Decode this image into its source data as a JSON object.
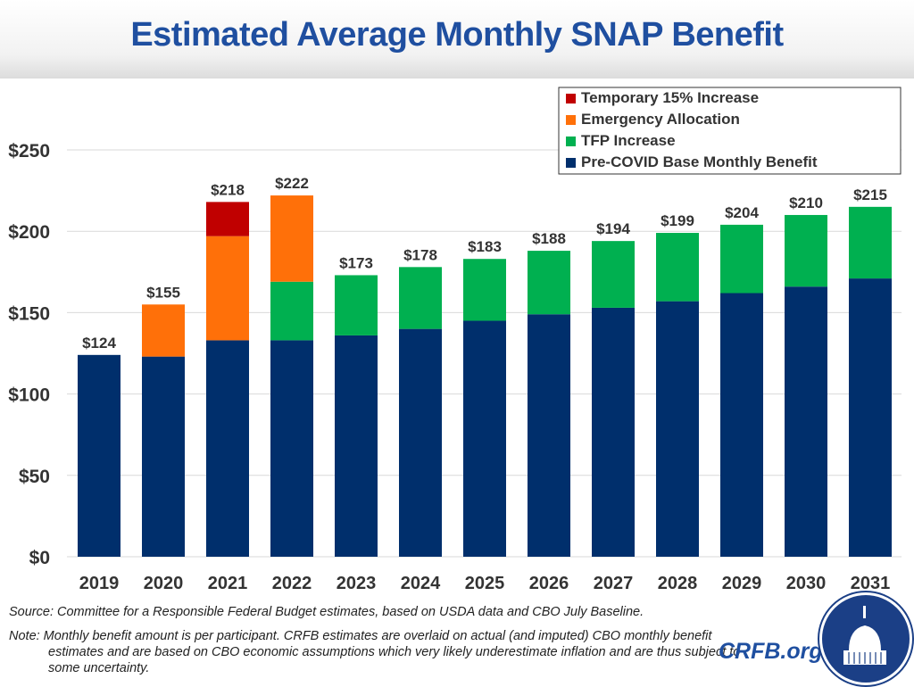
{
  "title": "Estimated Average Monthly SNAP Benefit",
  "chart_data": {
    "type": "bar",
    "stacked": true,
    "title": "Estimated Average Monthly SNAP Benefit",
    "categories": [
      "2019",
      "2020",
      "2021",
      "2022",
      "2023",
      "2024",
      "2025",
      "2026",
      "2027",
      "2028",
      "2029",
      "2030",
      "2031"
    ],
    "series": [
      {
        "name": "Pre-COVID Base Monthly Benefit",
        "color": "#002f6c",
        "values": [
          124,
          123,
          133,
          133,
          136,
          140,
          145,
          149,
          153,
          157,
          162,
          166,
          171
        ]
      },
      {
        "name": "TFP Increase",
        "color": "#00b050",
        "values": [
          0,
          0,
          0,
          36,
          37,
          38,
          38,
          39,
          41,
          42,
          42,
          44,
          44
        ]
      },
      {
        "name": "Emergency Allocation",
        "color": "#ff7009",
        "values": [
          0,
          32,
          64,
          53,
          0,
          0,
          0,
          0,
          0,
          0,
          0,
          0,
          0
        ]
      },
      {
        "name": "Temporary 15% Increase",
        "color": "#c00000",
        "values": [
          0,
          0,
          21,
          0,
          0,
          0,
          0,
          0,
          0,
          0,
          0,
          0,
          0
        ]
      }
    ],
    "totals": [
      "$124",
      "$155",
      "$218",
      "$222",
      "$173",
      "$178",
      "$183",
      "$188",
      "$194",
      "$199",
      "$204",
      "$210",
      "$215"
    ],
    "ylim": [
      0,
      250
    ],
    "yticks": [
      0,
      50,
      100,
      150,
      200,
      250
    ],
    "ytick_labels": [
      "$0",
      "$50",
      "$100",
      "$150",
      "$200",
      "$250"
    ],
    "grid": true,
    "legend_placement": "top-right",
    "legend_order": [
      "Temporary 15% Increase",
      "Emergency Allocation",
      "TFP Increase",
      "Pre-COVID Base Monthly Benefit"
    ]
  },
  "footer": {
    "source": "Source: Committee for a Responsible Federal Budget estimates, based on USDA data and CBO July Baseline.",
    "note": "Note: Monthly benefit amount is per participant. CRFB estimates are overlaid on actual (and imputed) CBO monthly benefit estimates and are based on CBO economic assumptions which very likely underestimate inflation and are thus subject to some uncertainty.",
    "brand": "CRFB.org"
  }
}
